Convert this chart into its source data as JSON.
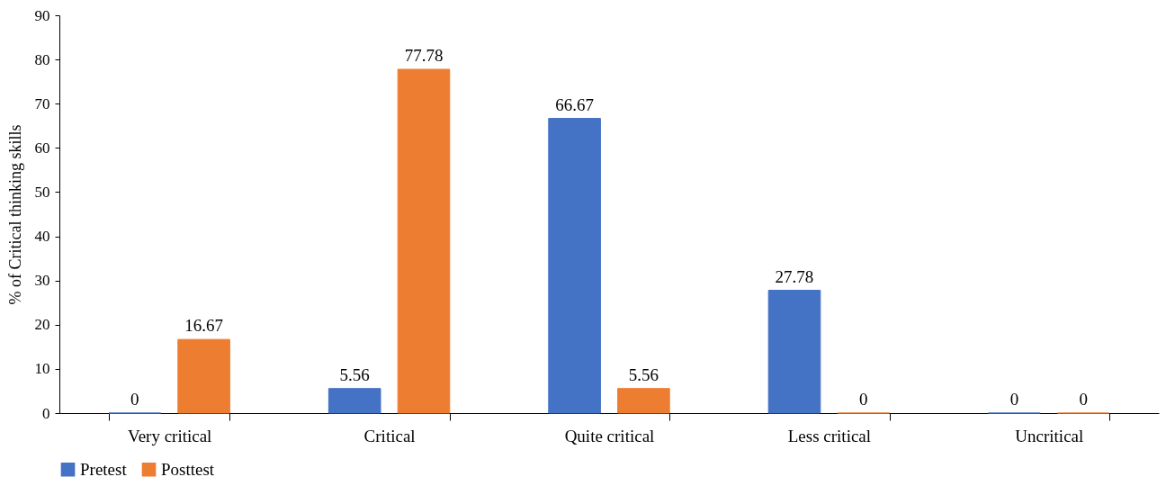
{
  "chart_data": {
    "type": "bar",
    "ylabel": "% of Critical thinking skills",
    "categories": [
      "Very critical",
      "Critical",
      "Quite critical",
      "Less critical",
      "Uncritical"
    ],
    "series": [
      {
        "name": "Pretest",
        "color": "#4472c4",
        "values": [
          0,
          5.56,
          66.67,
          27.78,
          0
        ]
      },
      {
        "name": "Posttest",
        "color": "#ed7d31",
        "values": [
          16.67,
          77.78,
          5.56,
          0,
          0
        ]
      }
    ],
    "ylim": [
      0,
      90
    ],
    "yticks": [
      0,
      10,
      20,
      30,
      40,
      50,
      60,
      70,
      80,
      90
    ],
    "grid": false,
    "legend": "bottom",
    "data_labels": true
  }
}
